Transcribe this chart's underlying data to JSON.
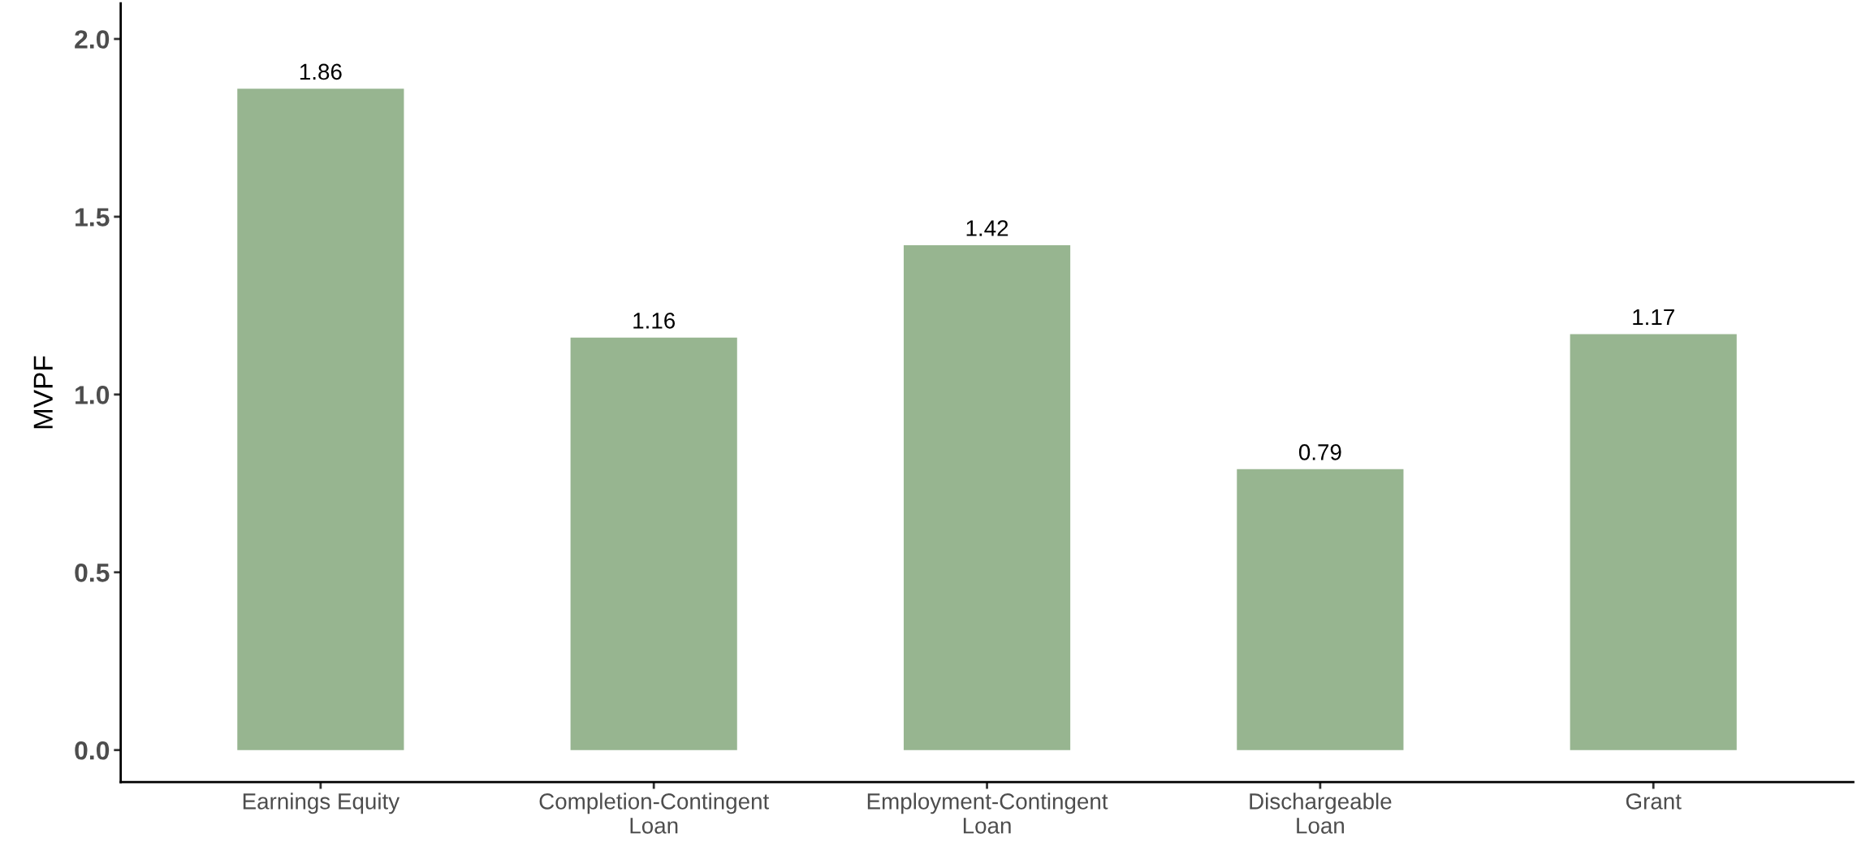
{
  "chart_data": {
    "type": "bar",
    "ylabel": "MVPF",
    "categories": [
      "Earnings Equity",
      "Completion-Contingent\nLoan",
      "Employment-Contingent\nLoan",
      "Dischargeable\nLoan",
      "Grant"
    ],
    "values": [
      1.86,
      1.16,
      1.42,
      0.79,
      1.17
    ],
    "color": "#97b590",
    "ylim": [
      -0.09,
      2.1
    ],
    "yticks": [
      {
        "value": 0,
        "label": "0.0"
      },
      0.5,
      {
        "value": 1,
        "label": "1.0"
      },
      1.5,
      {
        "value": 2,
        "label": "2.0"
      }
    ],
    "data_labels": true,
    "grid": false,
    "legend": false
  }
}
